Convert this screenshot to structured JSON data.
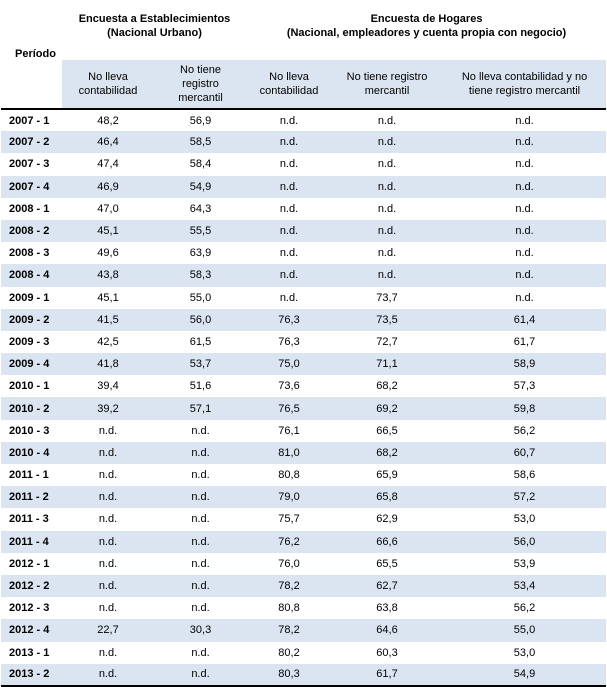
{
  "header": {
    "period_label": "Período",
    "group1": {
      "line1": "Encuesta a Establecimientos",
      "line2": "(Nacional Urbano)"
    },
    "group2": {
      "line1": "Encuesta de Hogares",
      "line2": "(Nacional, empleadores y cuenta propia con negocio)"
    },
    "cols": {
      "c1": {
        "l1": "No lleva",
        "l2": "contabilidad",
        "l3": ""
      },
      "c2": {
        "l1": "No tiene",
        "l2": "registro",
        "l3": "mercantil"
      },
      "c3": {
        "l1": "No lleva",
        "l2": "contabilidad",
        "l3": ""
      },
      "c4": {
        "l1": "No tiene registro",
        "l2": "mercantil",
        "l3": ""
      },
      "c5": {
        "l1": "No lleva contabilidad y no",
        "l2": "tiene registro mercantil",
        "l3": ""
      }
    }
  },
  "rows": [
    [
      "2007 - 1",
      "48,2",
      "56,9",
      "n.d.",
      "n.d.",
      "n.d."
    ],
    [
      "2007 - 2",
      "46,4",
      "58,5",
      "n.d.",
      "n.d.",
      "n.d."
    ],
    [
      "2007 - 3",
      "47,4",
      "58,4",
      "n.d.",
      "n.d.",
      "n.d."
    ],
    [
      "2007 - 4",
      "46,9",
      "54,9",
      "n.d.",
      "n.d.",
      "n.d."
    ],
    [
      "2008 - 1",
      "47,0",
      "64,3",
      "n.d.",
      "n.d.",
      "n.d."
    ],
    [
      "2008 - 2",
      "45,1",
      "55,5",
      "n.d.",
      "n.d.",
      "n.d."
    ],
    [
      "2008 - 3",
      "49,6",
      "63,9",
      "n.d.",
      "n.d.",
      "n.d."
    ],
    [
      "2008 - 4",
      "43,8",
      "58,3",
      "n.d.",
      "n.d.",
      "n.d."
    ],
    [
      "2009 - 1",
      "45,1",
      "55,0",
      "n.d.",
      "73,7",
      "n.d."
    ],
    [
      "2009 - 2",
      "41,5",
      "56,0",
      "76,3",
      "73,5",
      "61,4"
    ],
    [
      "2009 - 3",
      "42,5",
      "61,5",
      "76,3",
      "72,7",
      "61,7"
    ],
    [
      "2009 - 4",
      "41,8",
      "53,7",
      "75,0",
      "71,1",
      "58,9"
    ],
    [
      "2010 - 1",
      "39,4",
      "51,6",
      "73,6",
      "68,2",
      "57,3"
    ],
    [
      "2010 - 2",
      "39,2",
      "57,1",
      "76,5",
      "69,2",
      "59,8"
    ],
    [
      "2010 - 3",
      "n.d.",
      "n.d.",
      "76,1",
      "66,5",
      "56,2"
    ],
    [
      "2010 - 4",
      "n.d.",
      "n.d.",
      "81,0",
      "68,2",
      "60,7"
    ],
    [
      "2011 - 1",
      "n.d.",
      "n.d.",
      "80,8",
      "65,9",
      "58,6"
    ],
    [
      "2011 - 2",
      "n.d.",
      "n.d.",
      "79,0",
      "65,8",
      "57,2"
    ],
    [
      "2011 - 3",
      "n.d.",
      "n.d.",
      "75,7",
      "62,9",
      "53,0"
    ],
    [
      "2011 - 4",
      "n.d.",
      "n.d.",
      "76,2",
      "66,6",
      "56,0"
    ],
    [
      "2012 - 1",
      "n.d.",
      "n.d.",
      "76,0",
      "65,5",
      "53,9"
    ],
    [
      "2012 - 2",
      "n.d.",
      "n.d.",
      "78,2",
      "62,7",
      "53,4"
    ],
    [
      "2012 - 3",
      "n.d.",
      "n.d.",
      "80,8",
      "63,8",
      "56,2"
    ],
    [
      "2012 - 4",
      "22,7",
      "30,3",
      "78,2",
      "64,6",
      "55,0"
    ],
    [
      "2013 - 1",
      "n.d.",
      "n.d.",
      "80,2",
      "60,3",
      "53,0"
    ],
    [
      "2013 - 2",
      "n.d.",
      "n.d.",
      "80,3",
      "61,7",
      "54,9"
    ]
  ]
}
